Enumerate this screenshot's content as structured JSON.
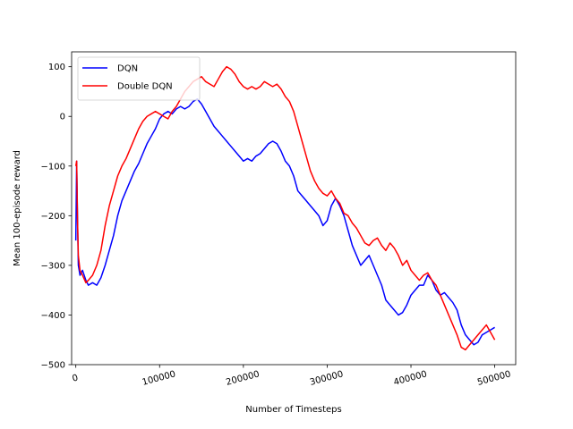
{
  "chart_data": {
    "type": "line",
    "xlabel": "Number of Timesteps",
    "ylabel": "Mean 100-episode reward",
    "xlim": [
      -5000,
      525000
    ],
    "ylim": [
      -500,
      130
    ],
    "xticks": [
      0,
      100000,
      200000,
      300000,
      400000,
      500000
    ],
    "xtick_labels": [
      "0",
      "100000",
      "200000",
      "300000",
      "400000",
      "500000"
    ],
    "xtick_rotation": 15,
    "yticks": [
      100,
      0,
      -100,
      -200,
      -300,
      -400,
      -500
    ],
    "ytick_labels": [
      "100",
      "0",
      "−100",
      "−200",
      "−300",
      "−400",
      "−500"
    ],
    "grid": false,
    "legend_position": "top-left",
    "series": [
      {
        "name": "DQN",
        "color": "#0000ff",
        "x": [
          0,
          1000,
          2000,
          3000,
          5000,
          8000,
          12000,
          15000,
          20000,
          25000,
          30000,
          35000,
          40000,
          45000,
          50000,
          55000,
          60000,
          65000,
          70000,
          75000,
          80000,
          85000,
          90000,
          95000,
          100000,
          105000,
          110000,
          115000,
          120000,
          125000,
          130000,
          135000,
          140000,
          145000,
          150000,
          155000,
          160000,
          165000,
          170000,
          175000,
          180000,
          185000,
          190000,
          195000,
          200000,
          205000,
          210000,
          215000,
          220000,
          225000,
          230000,
          235000,
          240000,
          245000,
          250000,
          255000,
          260000,
          265000,
          270000,
          275000,
          280000,
          285000,
          290000,
          295000,
          300000,
          305000,
          310000,
          315000,
          320000,
          325000,
          330000,
          335000,
          340000,
          345000,
          350000,
          355000,
          360000,
          365000,
          370000,
          375000,
          380000,
          385000,
          390000,
          395000,
          400000,
          405000,
          410000,
          415000,
          420000,
          425000,
          430000,
          435000,
          440000,
          445000,
          450000,
          455000,
          460000,
          465000,
          470000,
          475000,
          480000,
          485000,
          490000,
          495000,
          500000
        ],
        "y": [
          -250,
          -90,
          -200,
          -300,
          -320,
          -310,
          -330,
          -340,
          -335,
          -340,
          -325,
          -300,
          -270,
          -240,
          -200,
          -170,
          -150,
          -130,
          -110,
          -95,
          -75,
          -55,
          -40,
          -25,
          -5,
          5,
          10,
          5,
          15,
          20,
          15,
          20,
          30,
          35,
          25,
          10,
          -5,
          -20,
          -30,
          -40,
          -50,
          -60,
          -70,
          -80,
          -90,
          -85,
          -90,
          -80,
          -75,
          -65,
          -55,
          -50,
          -55,
          -70,
          -90,
          -100,
          -120,
          -150,
          -160,
          -170,
          -180,
          -190,
          -200,
          -220,
          -210,
          -180,
          -165,
          -180,
          -200,
          -230,
          -260,
          -280,
          -300,
          -290,
          -280,
          -300,
          -320,
          -340,
          -370,
          -380,
          -390,
          -400,
          -395,
          -380,
          -360,
          -350,
          -340,
          -340,
          -320,
          -330,
          -350,
          -360,
          -355,
          -365,
          -375,
          -390,
          -420,
          -440,
          -450,
          -460,
          -455,
          -440,
          -435,
          -430,
          -425
        ]
      },
      {
        "name": "Double DQN",
        "color": "#ff0000",
        "x": [
          0,
          1000,
          2000,
          3000,
          5000,
          8000,
          12000,
          15000,
          20000,
          25000,
          30000,
          35000,
          40000,
          45000,
          50000,
          55000,
          60000,
          65000,
          70000,
          75000,
          80000,
          85000,
          90000,
          95000,
          100000,
          105000,
          110000,
          115000,
          120000,
          125000,
          130000,
          135000,
          140000,
          145000,
          150000,
          155000,
          160000,
          165000,
          170000,
          175000,
          180000,
          185000,
          190000,
          195000,
          200000,
          205000,
          210000,
          215000,
          220000,
          225000,
          230000,
          235000,
          240000,
          245000,
          250000,
          255000,
          260000,
          265000,
          270000,
          275000,
          280000,
          285000,
          290000,
          295000,
          300000,
          305000,
          310000,
          315000,
          320000,
          325000,
          330000,
          335000,
          340000,
          345000,
          350000,
          355000,
          360000,
          365000,
          370000,
          375000,
          380000,
          385000,
          390000,
          395000,
          400000,
          405000,
          410000,
          415000,
          420000,
          425000,
          430000,
          435000,
          440000,
          445000,
          450000,
          455000,
          460000,
          465000,
          470000,
          475000,
          480000,
          485000,
          490000,
          495000,
          500000
        ],
        "y": [
          -100,
          -90,
          -210,
          -280,
          -310,
          -320,
          -335,
          -330,
          -320,
          -300,
          -270,
          -220,
          -180,
          -150,
          -120,
          -100,
          -85,
          -65,
          -45,
          -25,
          -10,
          0,
          5,
          10,
          5,
          0,
          -5,
          10,
          20,
          35,
          50,
          60,
          70,
          75,
          80,
          70,
          65,
          60,
          75,
          90,
          100,
          95,
          85,
          70,
          60,
          55,
          60,
          55,
          60,
          70,
          65,
          60,
          65,
          55,
          40,
          30,
          10,
          -20,
          -50,
          -80,
          -110,
          -130,
          -145,
          -155,
          -160,
          -150,
          -165,
          -175,
          -195,
          -200,
          -215,
          -225,
          -240,
          -255,
          -260,
          -250,
          -245,
          -260,
          -270,
          -255,
          -265,
          -280,
          -300,
          -290,
          -310,
          -320,
          -330,
          -320,
          -315,
          -330,
          -340,
          -360,
          -380,
          -400,
          -420,
          -440,
          -465,
          -470,
          -460,
          -450,
          -440,
          -430,
          -420,
          -435,
          -450
        ]
      }
    ]
  }
}
